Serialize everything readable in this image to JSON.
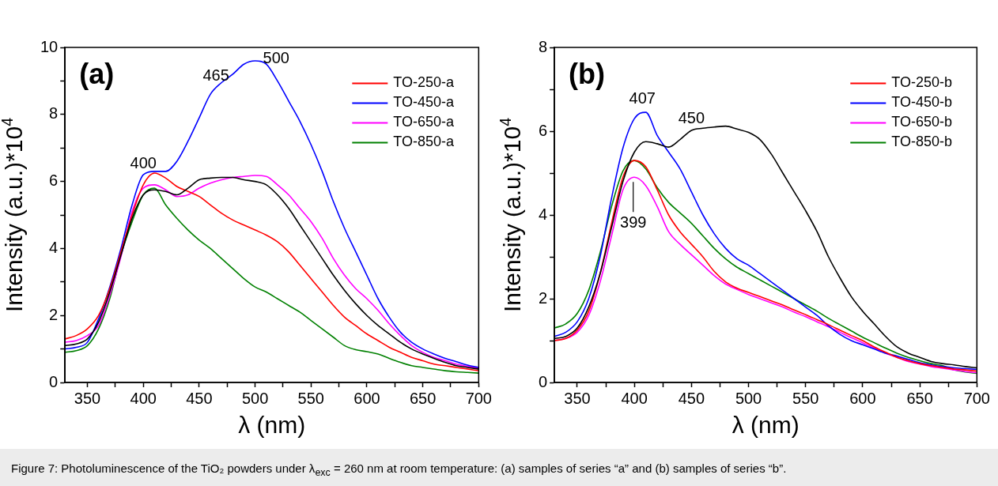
{
  "chart_data": [
    {
      "type": "line",
      "xlabel": "λ (nm)",
      "ylabel": "Intensity (a.u.)*10$^{4}$",
      "xlim": [
        330,
        700
      ],
      "xticks": [
        350,
        {
          "value": 375,
          "label": null
        },
        400,
        {
          "value": 425,
          "label": null
        },
        450,
        {
          "value": 475,
          "label": null
        },
        500,
        {
          "value": 525,
          "label": null
        },
        550,
        {
          "value": 575,
          "label": null
        },
        600,
        {
          "value": 625,
          "label": null
        },
        650,
        {
          "value": 675,
          "label": null
        },
        700
      ],
      "ylim": [
        0,
        10
      ],
      "yticks": [
        0,
        {
          "value": 1,
          "label": null
        },
        2,
        {
          "value": 3,
          "label": null
        },
        4,
        {
          "value": 5,
          "label": null
        },
        6,
        {
          "value": 7,
          "label": null
        },
        8,
        {
          "value": 9,
          "label": null
        },
        10
      ],
      "legend": "top right",
      "grid": false,
      "x": [
        330,
        340,
        350,
        360,
        370,
        380,
        390,
        400,
        410,
        420,
        430,
        440,
        450,
        460,
        470,
        480,
        490,
        500,
        510,
        520,
        530,
        540,
        550,
        560,
        570,
        580,
        590,
        600,
        610,
        620,
        630,
        640,
        650,
        660,
        670,
        680,
        690,
        700
      ],
      "series": [
        {
          "color": "#000000",
          "values": [
            1.1,
            1.15,
            1.3,
            1.8,
            2.7,
            3.8,
            4.9,
            5.6,
            5.75,
            5.7,
            5.6,
            5.8,
            6.05,
            6.1,
            6.12,
            6.12,
            6.05,
            6.0,
            5.9,
            5.6,
            5.2,
            4.7,
            4.2,
            3.7,
            3.2,
            2.75,
            2.35,
            2.0,
            1.7,
            1.45,
            1.2,
            1.0,
            0.85,
            0.72,
            0.6,
            0.5,
            0.45,
            0.4
          ]
        },
        {
          "name": "TO-250-a",
          "color": "#ff0000",
          "values": [
            1.3,
            1.4,
            1.6,
            2.0,
            2.8,
            3.9,
            5.0,
            5.9,
            6.25,
            6.1,
            5.85,
            5.7,
            5.55,
            5.3,
            5.05,
            4.85,
            4.7,
            4.55,
            4.4,
            4.2,
            3.9,
            3.5,
            3.1,
            2.7,
            2.3,
            1.95,
            1.7,
            1.45,
            1.25,
            1.05,
            0.9,
            0.75,
            0.65,
            0.55,
            0.5,
            0.45,
            0.4,
            0.35
          ]
        },
        {
          "name": "TO-450-a",
          "color": "#0000ff",
          "values": [
            1.0,
            1.05,
            1.2,
            1.9,
            2.85,
            4.0,
            5.3,
            6.2,
            6.3,
            6.3,
            6.6,
            7.2,
            7.9,
            8.6,
            8.95,
            9.2,
            9.5,
            9.6,
            9.5,
            9.0,
            8.4,
            7.8,
            7.1,
            6.3,
            5.4,
            4.6,
            3.9,
            3.2,
            2.5,
            1.95,
            1.5,
            1.2,
            1.0,
            0.85,
            0.72,
            0.62,
            0.52,
            0.45
          ]
        },
        {
          "name": "TO-650-a",
          "color": "#ff00ff",
          "values": [
            1.2,
            1.25,
            1.4,
            1.7,
            2.6,
            3.75,
            5.1,
            5.8,
            5.9,
            5.75,
            5.55,
            5.6,
            5.8,
            5.95,
            6.05,
            6.12,
            6.15,
            6.18,
            6.15,
            5.9,
            5.6,
            5.2,
            4.8,
            4.3,
            3.7,
            3.2,
            2.8,
            2.5,
            2.15,
            1.75,
            1.4,
            1.1,
            0.9,
            0.75,
            0.65,
            0.55,
            0.48,
            0.42
          ]
        },
        {
          "name": "TO-850-a",
          "color": "#008000",
          "values": [
            0.9,
            0.95,
            1.1,
            1.6,
            2.5,
            3.8,
            4.8,
            5.6,
            5.8,
            5.3,
            4.9,
            4.55,
            4.25,
            4.0,
            3.7,
            3.4,
            3.1,
            2.85,
            2.7,
            2.5,
            2.3,
            2.1,
            1.85,
            1.6,
            1.35,
            1.1,
            0.98,
            0.92,
            0.85,
            0.72,
            0.6,
            0.5,
            0.45,
            0.4,
            0.35,
            0.32,
            0.3,
            0.28
          ]
        }
      ],
      "annotations": [
        "(a)",
        {
          "text": "400",
          "x": 400,
          "y": 6.2
        },
        {
          "text": "465",
          "x": 465,
          "y": 8.8
        },
        {
          "text": "500",
          "x": 500,
          "y": 9.6
        },
        "Figure 7: Photoluminescence of the TiO₂ powders under λ$_{exc}$ = 260 nm at room temperature: (a) samples of series “a” and (b) samples of series “b”."
      ]
    },
    {
      "type": "line",
      "xlabel": "λ (nm)",
      "ylabel": "Intensity (a.u.)*10$^{4}$",
      "xlim": [
        330,
        700
      ],
      "xticks": [
        350,
        {
          "value": 375,
          "label": null
        },
        400,
        {
          "value": 425,
          "label": null
        },
        450,
        {
          "value": 475,
          "label": null
        },
        500,
        {
          "value": 525,
          "label": null
        },
        550,
        {
          "value": 575,
          "label": null
        },
        600,
        {
          "value": 625,
          "label": null
        },
        650,
        {
          "value": 675,
          "label": null
        },
        700
      ],
      "ylim": [
        0,
        8
      ],
      "yticks": [
        0,
        {
          "value": 1,
          "label": null
        },
        2,
        {
          "value": 3,
          "label": null
        },
        4,
        {
          "value": 5,
          "label": null
        },
        6,
        {
          "value": 7,
          "label": null
        },
        8
      ],
      "legend": "top right",
      "grid": false,
      "x": [
        330,
        340,
        350,
        360,
        370,
        380,
        390,
        400,
        410,
        420,
        430,
        440,
        450,
        460,
        470,
        480,
        490,
        500,
        510,
        520,
        530,
        540,
        550,
        560,
        570,
        580,
        590,
        600,
        610,
        620,
        630,
        640,
        650,
        660,
        670,
        680,
        690,
        700
      ],
      "series": [
        {
          "color": "#000000",
          "values": [
            1.05,
            1.1,
            1.3,
            1.8,
            2.6,
            3.7,
            4.8,
            5.5,
            5.75,
            5.7,
            5.62,
            5.8,
            6.02,
            6.07,
            6.1,
            6.12,
            6.05,
            5.97,
            5.8,
            5.45,
            5.0,
            4.55,
            4.1,
            3.6,
            3.0,
            2.5,
            2.05,
            1.7,
            1.4,
            1.1,
            0.85,
            0.7,
            0.6,
            0.5,
            0.45,
            0.42,
            0.38,
            0.35
          ]
        },
        {
          "name": "TO-250-b",
          "color": "#ff0000",
          "values": [
            1.0,
            1.05,
            1.25,
            1.7,
            2.6,
            3.8,
            4.9,
            5.3,
            5.15,
            4.6,
            4.0,
            3.6,
            3.3,
            3.0,
            2.65,
            2.4,
            2.25,
            2.15,
            2.05,
            1.95,
            1.85,
            1.73,
            1.62,
            1.5,
            1.38,
            1.25,
            1.12,
            1.0,
            0.85,
            0.72,
            0.6,
            0.52,
            0.45,
            0.4,
            0.36,
            0.32,
            0.3,
            0.27
          ]
        },
        {
          "name": "TO-450-b",
          "color": "#0000ff",
          "values": [
            1.1,
            1.2,
            1.45,
            2.0,
            3.0,
            4.4,
            5.6,
            6.3,
            6.45,
            5.9,
            5.5,
            5.1,
            4.55,
            4.0,
            3.55,
            3.2,
            2.95,
            2.8,
            2.6,
            2.4,
            2.2,
            2.0,
            1.8,
            1.6,
            1.35,
            1.15,
            1.0,
            0.9,
            0.8,
            0.7,
            0.63,
            0.55,
            0.47,
            0.42,
            0.38,
            0.35,
            0.33,
            0.31
          ]
        },
        {
          "name": "TO-650-b",
          "color": "#ff00ff",
          "values": [
            1.0,
            1.05,
            1.2,
            1.6,
            2.4,
            3.5,
            4.6,
            4.9,
            4.7,
            4.2,
            3.6,
            3.3,
            3.05,
            2.8,
            2.55,
            2.35,
            2.22,
            2.1,
            2.0,
            1.9,
            1.8,
            1.68,
            1.57,
            1.45,
            1.33,
            1.2,
            1.07,
            0.95,
            0.82,
            0.7,
            0.6,
            0.5,
            0.44,
            0.38,
            0.34,
            0.3,
            0.26,
            0.23
          ]
        },
        {
          "name": "TO-850-b",
          "color": "#008000",
          "values": [
            1.3,
            1.4,
            1.65,
            2.2,
            3.1,
            4.2,
            5.05,
            5.3,
            5.1,
            4.65,
            4.3,
            4.05,
            3.8,
            3.5,
            3.2,
            2.95,
            2.75,
            2.6,
            2.45,
            2.3,
            2.15,
            2.0,
            1.85,
            1.7,
            1.53,
            1.38,
            1.23,
            1.08,
            0.95,
            0.82,
            0.7,
            0.6,
            0.52,
            0.45,
            0.4,
            0.3,
            0.25,
            0.22
          ]
        }
      ],
      "annotations": [
        "(b)",
        {
          "text": "407",
          "x": 407,
          "y": 6.5
        },
        {
          "text": "450",
          "x": 450,
          "y": 6.02
        },
        {
          "text": "399",
          "x": 399,
          "y": 4.9
        }
      ]
    }
  ]
}
